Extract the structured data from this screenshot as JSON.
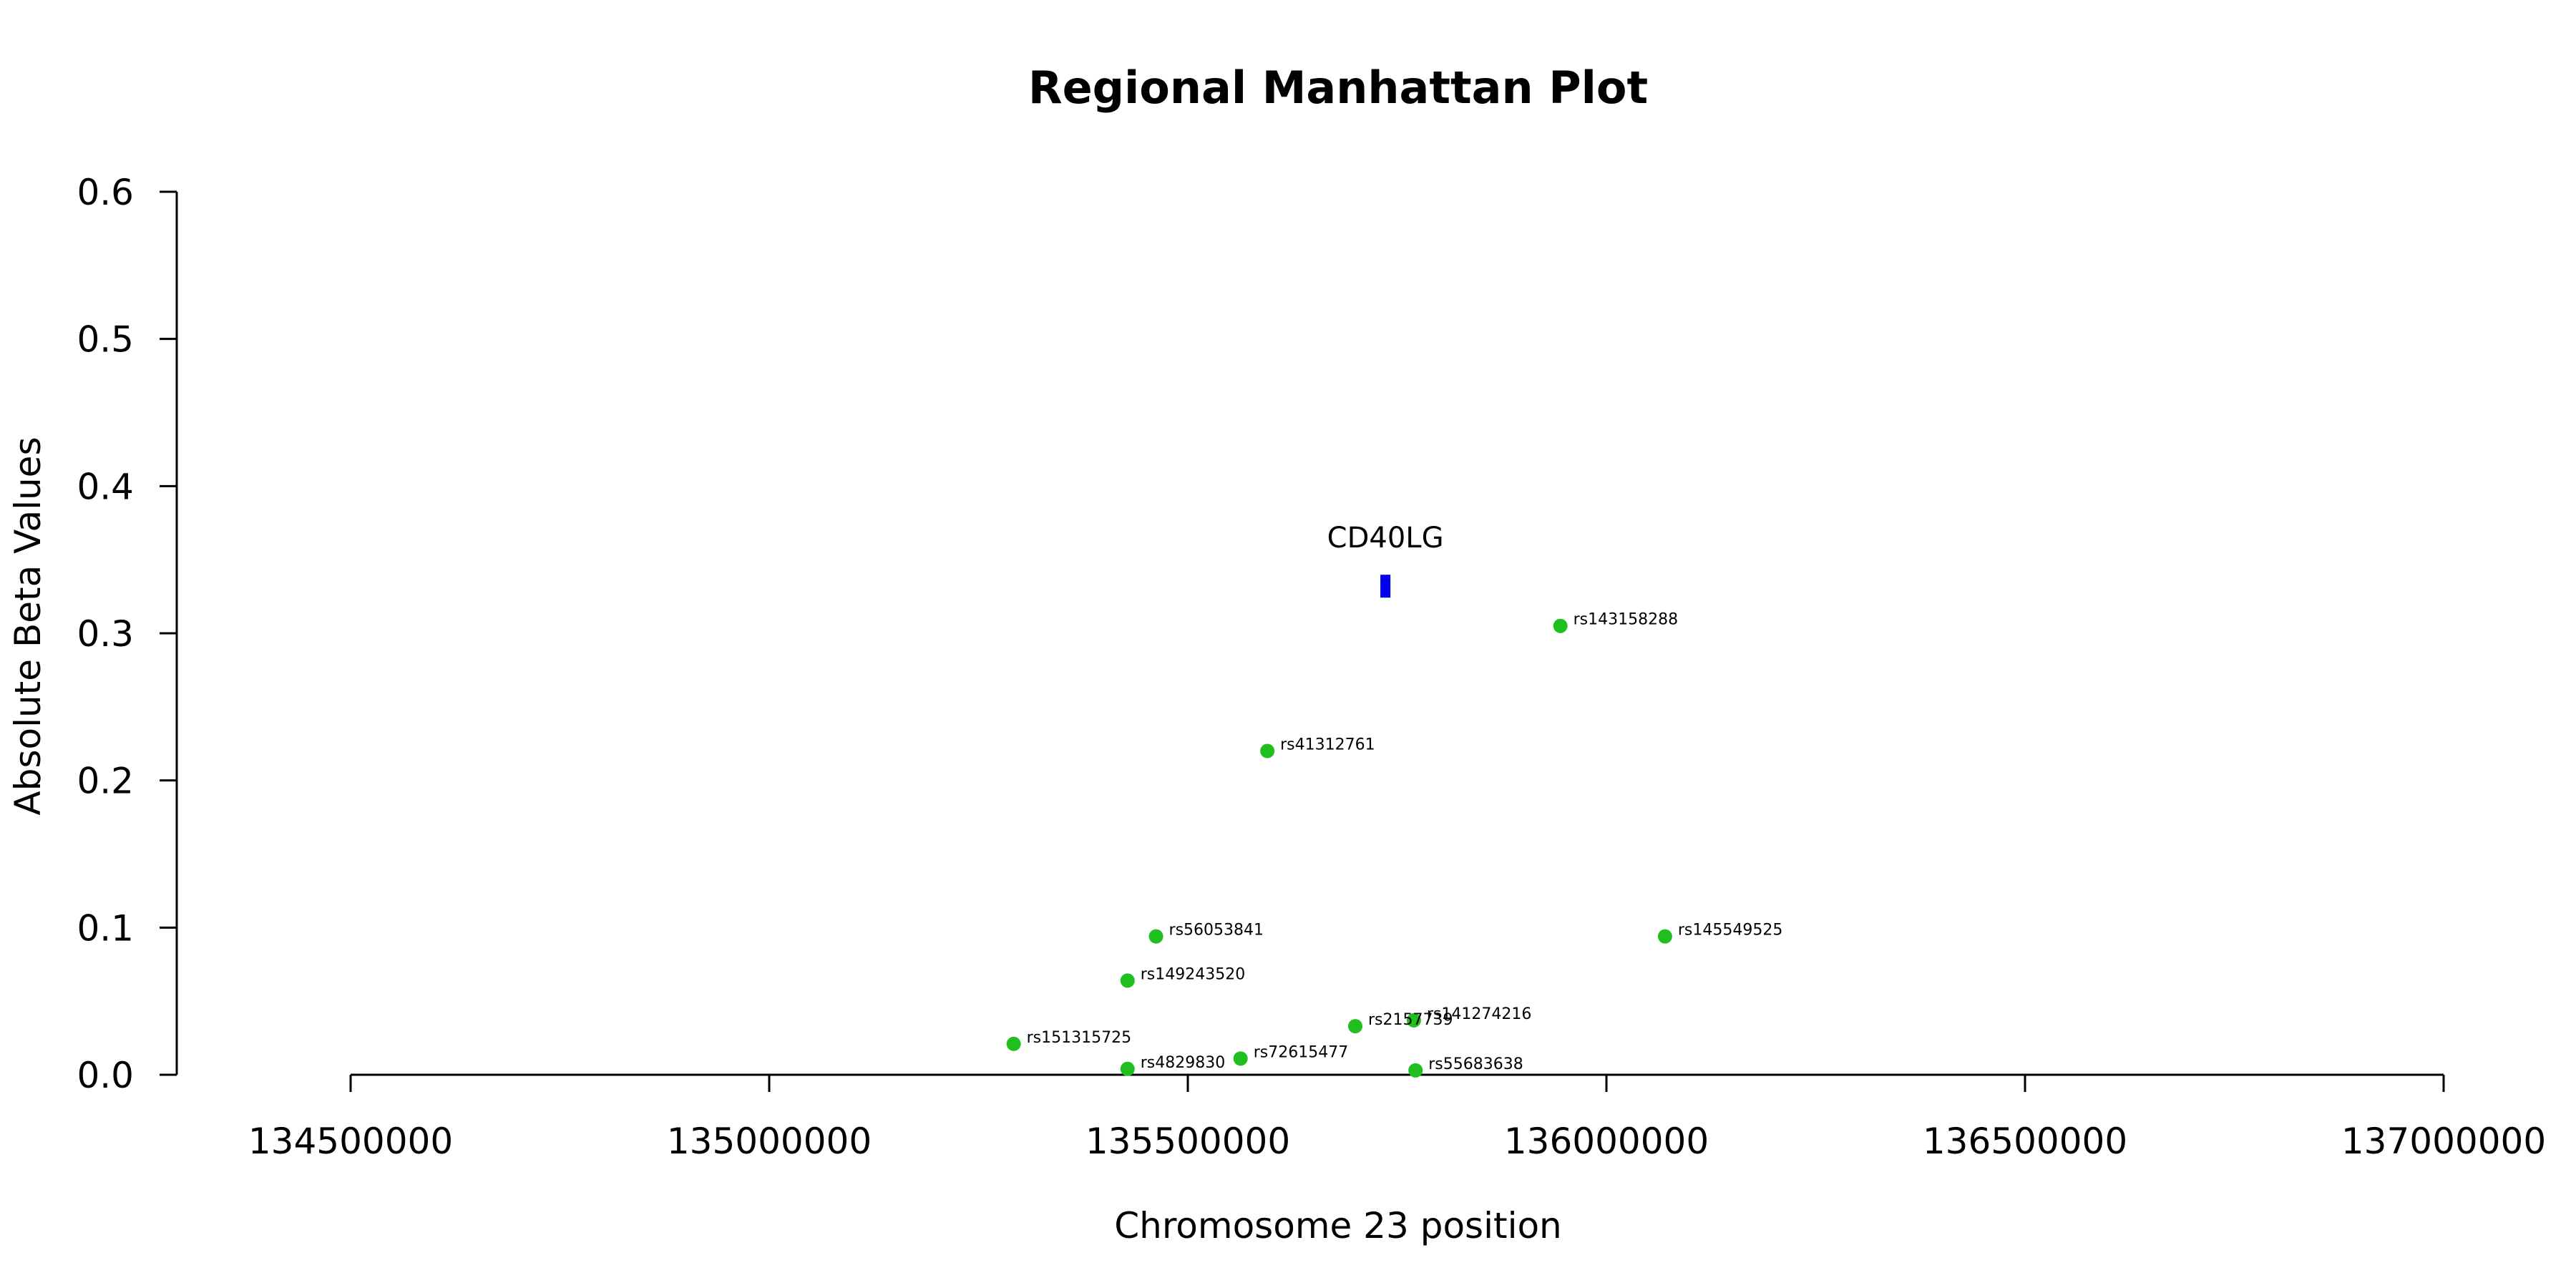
{
  "chart_data": {
    "type": "scatter",
    "title": "Regional Manhattan Plot",
    "xlabel": "Chromosome 23 position",
    "ylabel": "Absolute Beta Values",
    "xlim": [
      134500000,
      137000000
    ],
    "ylim": [
      0,
      0.6
    ],
    "xticks": [
      134500000,
      135000000,
      135500000,
      136000000,
      136500000,
      137000000
    ],
    "yticks": [
      0.0,
      0.1,
      0.2,
      0.3,
      0.4,
      0.5,
      0.6
    ],
    "ytick_labels": [
      "0.0",
      "0.1",
      "0.2",
      "0.3",
      "0.4",
      "0.5",
      "0.6"
    ],
    "grid": false,
    "legend": "none",
    "point_color": "#1ebf1e",
    "gene_color": "#0000ee",
    "points": [
      {
        "label": "rs143158288",
        "x": 135945000,
        "y": 0.305
      },
      {
        "label": "rs41312761",
        "x": 135595000,
        "y": 0.22
      },
      {
        "label": "rs56053841",
        "x": 135462000,
        "y": 0.094
      },
      {
        "label": "rs145549525",
        "x": 136070000,
        "y": 0.094
      },
      {
        "label": "rs149243520",
        "x": 135428000,
        "y": 0.064
      },
      {
        "label": "rs141274216",
        "x": 135770000,
        "y": 0.037
      },
      {
        "label": "rs2157739",
        "x": 135700000,
        "y": 0.033
      },
      {
        "label": "rs151315725",
        "x": 135292000,
        "y": 0.021
      },
      {
        "label": "rs72615477",
        "x": 135563000,
        "y": 0.011
      },
      {
        "label": "rs4829830",
        "x": 135428000,
        "y": 0.004
      },
      {
        "label": "rs55683638",
        "x": 135772000,
        "y": 0.003
      }
    ],
    "genes": [
      {
        "name": "CD40LG",
        "start": 135730000,
        "end": 135742000,
        "y": 0.332
      }
    ]
  }
}
